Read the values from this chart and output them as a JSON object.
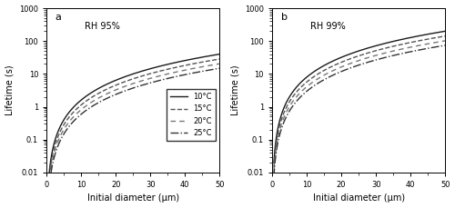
{
  "title_a": "a",
  "title_b": "b",
  "label_a": "RH 95%",
  "label_b": "RH 99%",
  "xlabel": "Initial diameter (μm)",
  "ylabel": "Lifetime (s)",
  "ylim": [
    0.01,
    1000
  ],
  "xlim": [
    0,
    50
  ],
  "temperatures": [
    10,
    15,
    20,
    25
  ],
  "legend_labels": [
    "10°C",
    "15°C",
    "20°C",
    "25°C"
  ],
  "background_color": "#ffffff",
  "rh_a": 0.95,
  "rh_b": 0.99,
  "colors": [
    "#1a1a1a",
    "#555555",
    "#777777",
    "#333333"
  ],
  "linewidths": [
    1.0,
    1.0,
    1.0,
    1.0
  ]
}
